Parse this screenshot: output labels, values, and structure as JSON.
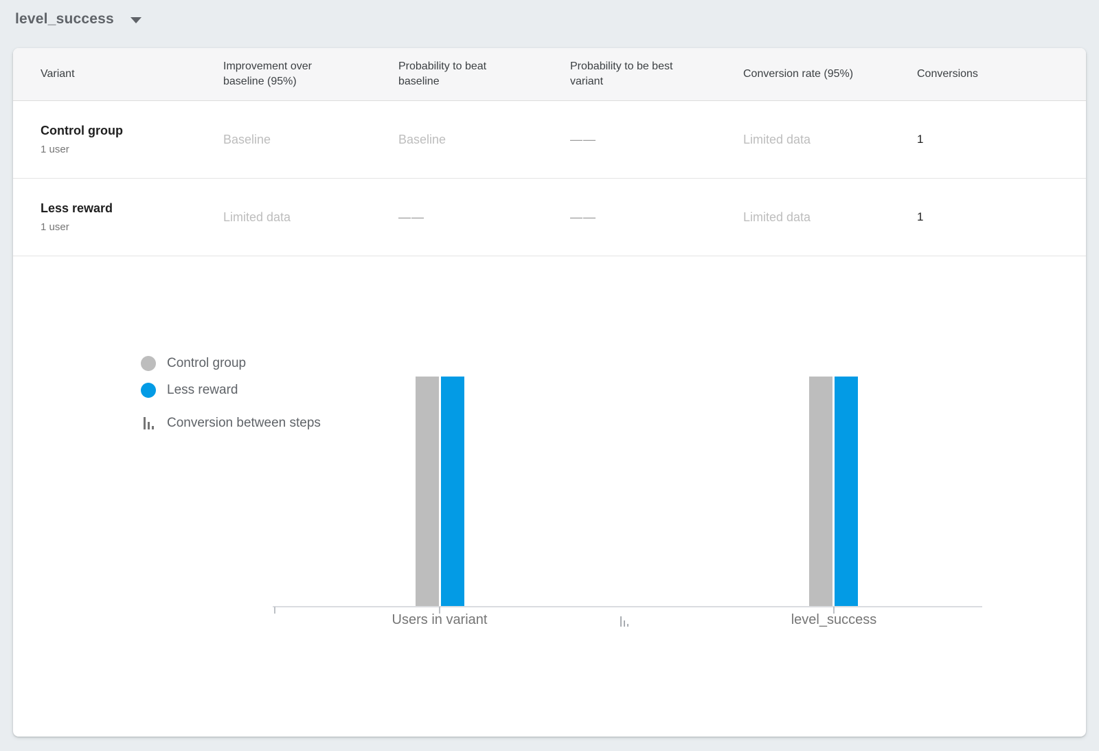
{
  "header": {
    "metric_selector_value": "level_success"
  },
  "table": {
    "columns": [
      "Variant",
      "Improvement over baseline (95%)",
      "Probability to beat baseline",
      "Probability to be best variant",
      "Conversion rate (95%)",
      "Conversions"
    ],
    "rows": [
      {
        "variant": "Control group",
        "users": "1 user",
        "improvement": "Baseline",
        "prob_beat_baseline": "Baseline",
        "prob_best_variant": "——",
        "conversion_rate": "Limited data",
        "conversions": "1"
      },
      {
        "variant": "Less reward",
        "users": "1 user",
        "improvement": "Limited data",
        "prob_beat_baseline": "——",
        "prob_best_variant": "——",
        "conversion_rate": "Limited data",
        "conversions": "1"
      }
    ]
  },
  "chart_data": {
    "type": "bar",
    "categories": [
      "Users in variant",
      "level_success"
    ],
    "series": [
      {
        "name": "Control group",
        "color": "#bdbdbd",
        "values": [
          1,
          1
        ]
      },
      {
        "name": "Less reward",
        "color": "#039be5",
        "values": [
          1,
          1
        ]
      }
    ],
    "ylim": [
      0,
      1
    ],
    "grid": false,
    "legend_position": "left",
    "legend": [
      {
        "label": "Control group",
        "swatch": "circle",
        "color": "#bdbdbd"
      },
      {
        "label": "Less reward",
        "swatch": "circle",
        "color": "#039be5"
      },
      {
        "label": "Conversion between steps",
        "swatch": "funnel-steps-icon",
        "color": "#757575"
      }
    ],
    "title": "",
    "xlabel": "",
    "ylabel": ""
  },
  "colors": {
    "accent_blue": "#039be5",
    "bar_gray": "#bdbdbd",
    "page_background": "#e9edf0",
    "muted_text": "#bdbdbd"
  }
}
